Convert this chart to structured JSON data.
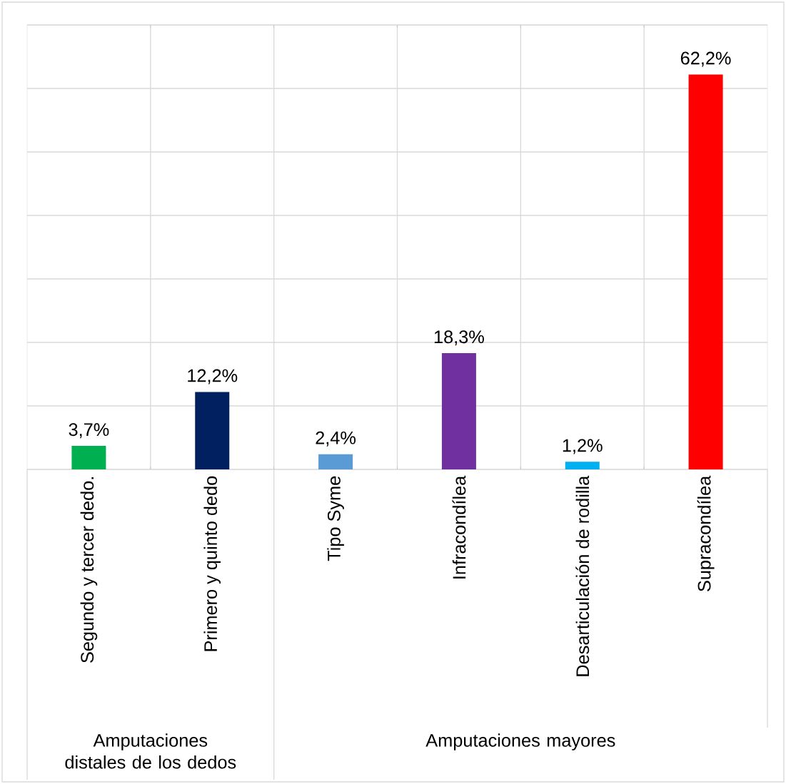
{
  "chart_data": {
    "type": "bar",
    "categories": [
      "Segundo y tercer dedo.",
      "Primero y quinto dedo",
      "Tipo Syme",
      "Infracondílea",
      "Desarticulación de rodilla",
      "Supracondílea"
    ],
    "values": [
      3.7,
      12.2,
      2.4,
      18.3,
      1.2,
      62.2
    ],
    "value_labels": [
      "3,7%",
      "12,2%",
      "2,4%",
      "18,3%",
      "1,2%",
      "62,2%"
    ],
    "colors": [
      "#00b050",
      "#002060",
      "#5b9bd5",
      "#7030a0",
      "#00b0f0",
      "#ff0000"
    ],
    "ylim": [
      0,
      70
    ],
    "yticks": [
      {
        "value": 0,
        "label": null
      },
      {
        "value": 10,
        "label": null
      },
      {
        "value": 20,
        "label": null
      },
      {
        "value": 30,
        "label": null
      },
      {
        "value": 40,
        "label": null
      },
      {
        "value": 50,
        "label": null
      },
      {
        "value": 60,
        "label": null
      },
      {
        "value": 70,
        "label": null
      }
    ],
    "tick_labels": "x",
    "grid": true,
    "annotations": [
      "Amputaciones distales de los dedos",
      "Amputaciones mayores"
    ]
  }
}
